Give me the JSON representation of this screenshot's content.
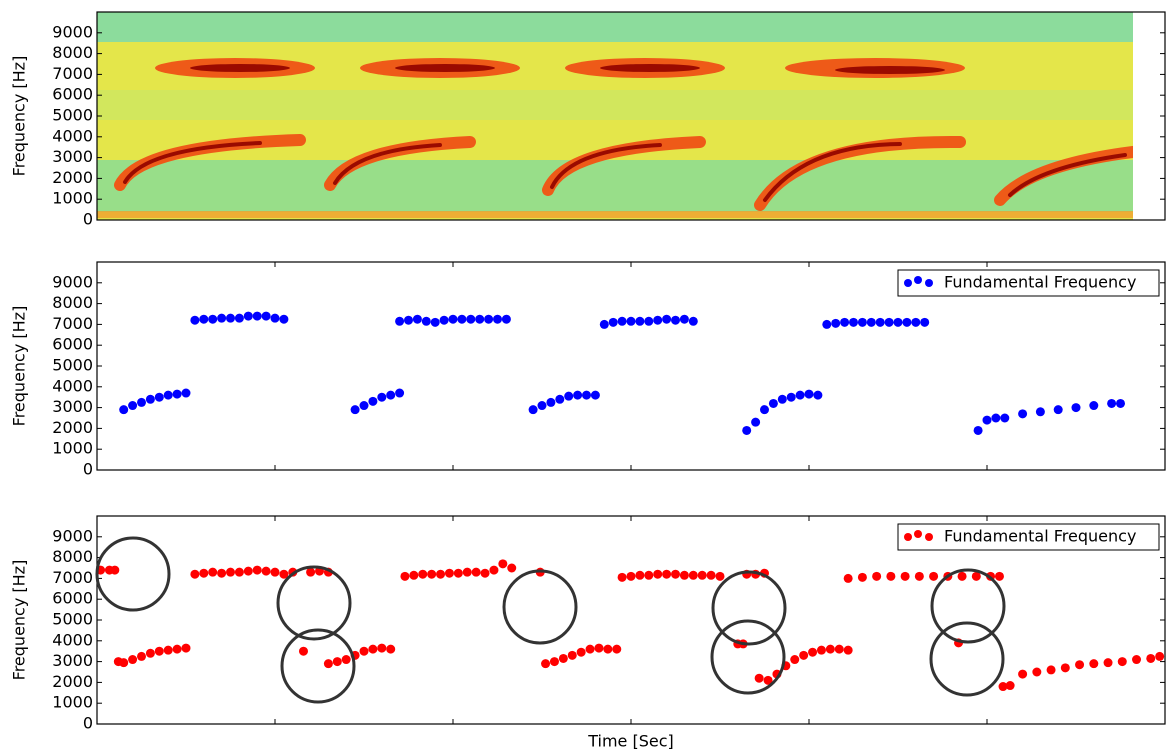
{
  "chart_data": [
    {
      "type": "spectrogram",
      "ylabel": "Frequency [Hz]",
      "ylim": [
        0,
        10000
      ],
      "yticks": [
        0,
        1000,
        2000,
        3000,
        4000,
        5000,
        6000,
        7000,
        8000,
        9000
      ]
    },
    {
      "type": "scatter",
      "ylabel": "Frequency [Hz]",
      "xlim": [
        0,
        6
      ],
      "xticks": [
        1,
        2,
        3,
        4,
        5
      ],
      "ylim": [
        0,
        10000
      ],
      "yticks": [
        0,
        1000,
        2000,
        3000,
        4000,
        5000,
        6000,
        7000,
        8000,
        9000
      ],
      "legend": "upper right",
      "series": [
        {
          "name": "Fundamental Frequency",
          "color": "#0000ff",
          "x": [
            0.15,
            0.2,
            0.25,
            0.3,
            0.35,
            0.4,
            0.45,
            0.5,
            0.55,
            0.6,
            0.65,
            0.7,
            0.75,
            0.8,
            0.85,
            0.9,
            0.95,
            1.0,
            1.05,
            1.45,
            1.5,
            1.55,
            1.6,
            1.65,
            1.7,
            1.7,
            1.75,
            1.8,
            1.85,
            1.9,
            1.95,
            2.0,
            2.05,
            2.1,
            2.15,
            2.2,
            2.25,
            2.3,
            2.45,
            2.5,
            2.55,
            2.6,
            2.65,
            2.7,
            2.75,
            2.8,
            2.85,
            2.9,
            2.95,
            3.0,
            3.05,
            3.1,
            3.15,
            3.2,
            3.25,
            3.3,
            3.35,
            3.65,
            3.7,
            3.75,
            3.8,
            3.85,
            3.9,
            3.95,
            4.0,
            4.05,
            4.1,
            4.15,
            4.2,
            4.25,
            4.3,
            4.35,
            4.4,
            4.45,
            4.5,
            4.55,
            4.6,
            4.65,
            4.95,
            5.0,
            5.05,
            5.1,
            5.2,
            5.3,
            5.4,
            5.5,
            5.6,
            5.7,
            5.75
          ],
          "values": [
            2900,
            3100,
            3250,
            3400,
            3500,
            3600,
            3650,
            3700,
            7200,
            7250,
            7250,
            7300,
            7300,
            7300,
            7400,
            7400,
            7400,
            7300,
            7250,
            2900,
            3100,
            3300,
            3500,
            3600,
            3700,
            7150,
            7200,
            7250,
            7150,
            7100,
            7200,
            7250,
            7250,
            7250,
            7250,
            7250,
            7250,
            7250,
            2900,
            3100,
            3250,
            3400,
            3550,
            3600,
            3600,
            3600,
            7000,
            7100,
            7150,
            7150,
            7150,
            7150,
            7200,
            7250,
            7200,
            7250,
            7150,
            1900,
            2300,
            2900,
            3200,
            3400,
            3500,
            3600,
            3650,
            3600,
            7000,
            7050,
            7100,
            7100,
            7100,
            7100,
            7100,
            7100,
            7100,
            7100,
            7100,
            7100,
            1900,
            2400,
            2500,
            2500,
            2700,
            2800,
            2900,
            3000,
            3100,
            3200,
            3200
          ]
        }
      ]
    },
    {
      "type": "scatter",
      "ylabel": "Frequency [Hz]",
      "xlabel": "Time [Sec]",
      "xlim": [
        0,
        6
      ],
      "xticks": [
        1,
        2,
        3,
        4,
        5
      ],
      "ylim": [
        0,
        10000
      ],
      "yticks": [
        0,
        1000,
        2000,
        3000,
        4000,
        5000,
        6000,
        7000,
        8000,
        9000
      ],
      "legend": "upper right",
      "series": [
        {
          "name": "Fundamental Frequency",
          "color": "#ff0000",
          "x": [
            0.02,
            0.07,
            0.1,
            0.12,
            0.15,
            0.2,
            0.25,
            0.3,
            0.35,
            0.4,
            0.45,
            0.5,
            0.55,
            0.6,
            0.65,
            0.7,
            0.75,
            0.8,
            0.85,
            0.9,
            0.95,
            1.0,
            1.05,
            1.1,
            1.2,
            1.25,
            1.3,
            1.16,
            1.3,
            1.35,
            1.4,
            1.45,
            1.5,
            1.55,
            1.6,
            1.65,
            1.73,
            1.78,
            1.83,
            1.88,
            1.93,
            1.98,
            2.03,
            2.08,
            2.13,
            2.18,
            2.23,
            2.28,
            2.33,
            2.49,
            2.52,
            2.57,
            2.62,
            2.67,
            2.72,
            2.77,
            2.82,
            2.87,
            2.92,
            2.95,
            3.0,
            3.05,
            3.1,
            3.15,
            3.2,
            3.25,
            3.3,
            3.35,
            3.4,
            3.45,
            3.5,
            3.65,
            3.7,
            3.75,
            3.6,
            3.63,
            3.72,
            3.77,
            3.82,
            3.87,
            3.92,
            3.97,
            4.02,
            4.07,
            4.12,
            4.17,
            4.22,
            4.22,
            4.3,
            4.38,
            4.46,
            4.54,
            4.62,
            4.7,
            4.78,
            4.86,
            4.94,
            5.02,
            5.07,
            4.84,
            5.09,
            5.13,
            5.2,
            5.28,
            5.36,
            5.44,
            5.52,
            5.6,
            5.68,
            5.76,
            5.84,
            5.92,
            5.97
          ],
          "values": [
            7400,
            7400,
            7400,
            3000,
            2950,
            3100,
            3250,
            3400,
            3500,
            3550,
            3600,
            3650,
            7200,
            7250,
            7300,
            7250,
            7300,
            7300,
            7350,
            7400,
            7350,
            7300,
            7200,
            7300,
            7300,
            7350,
            7300,
            3500,
            2900,
            3000,
            3100,
            3300,
            3500,
            3600,
            3650,
            3600,
            7100,
            7150,
            7200,
            7200,
            7200,
            7250,
            7250,
            7300,
            7300,
            7250,
            7400,
            7700,
            7500,
            7300,
            2900,
            3000,
            3150,
            3300,
            3450,
            3600,
            3650,
            3600,
            3600,
            7050,
            7100,
            7150,
            7150,
            7200,
            7200,
            7200,
            7150,
            7150,
            7150,
            7150,
            7100,
            7200,
            7200,
            7250,
            3850,
            3850,
            2200,
            2100,
            2400,
            2800,
            3100,
            3300,
            3450,
            3550,
            3600,
            3600,
            3550,
            7000,
            7050,
            7100,
            7100,
            7100,
            7100,
            7100,
            7100,
            7100,
            7100,
            7100,
            7100,
            3900,
            1800,
            1850,
            2400,
            2500,
            2600,
            2700,
            2850,
            2900,
            2950,
            3000,
            3100,
            3150,
            3250
          ]
        }
      ]
    }
  ]
}
